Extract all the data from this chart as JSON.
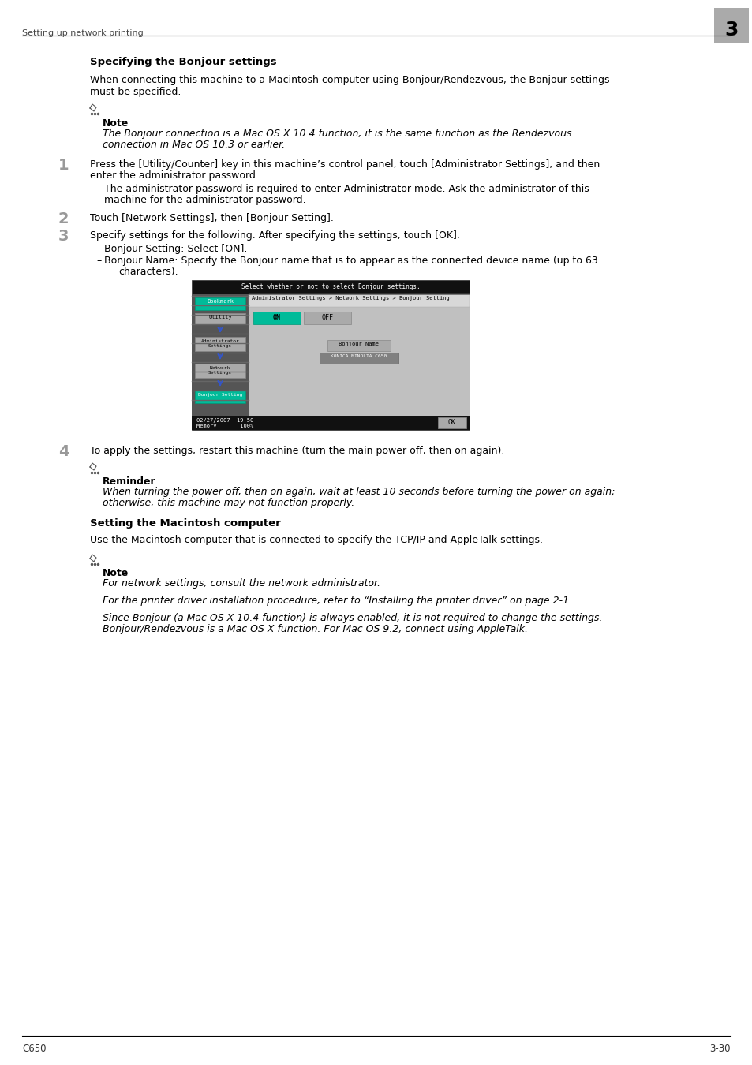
{
  "header_text": "Setting up network printing",
  "chapter_num": "3",
  "footer_left": "C650",
  "footer_right": "3-30",
  "bg_color": "#ffffff",
  "section1_title": "Specifying the Bonjour settings",
  "section1_intro_1": "When connecting this machine to a Macintosh computer using Bonjour/Rendezvous, the Bonjour settings",
  "section1_intro_2": "must be specified.",
  "note1_label": "Note",
  "note1_text_1": "The Bonjour connection is a Mac OS X 10.4 function, it is the same function as the Rendezvous",
  "note1_text_2": "connection in Mac OS 10.3 or earlier.",
  "step1_num": "1",
  "step1_text_1": "Press the [Utility/Counter] key in this machine’s control panel, touch [Administrator Settings], and then",
  "step1_text_2": "enter the administrator password.",
  "step1_sub_1": "The administrator password is required to enter Administrator mode. Ask the administrator of this",
  "step1_sub_2": "machine for the administrator password.",
  "step2_num": "2",
  "step2_text": "Touch [Network Settings], then [Bonjour Setting].",
  "step3_num": "3",
  "step3_text": "Specify settings for the following. After specifying the settings, touch [OK].",
  "step3_sub1": "Bonjour Setting: Select [ON].",
  "step3_sub2_1": "Bonjour Name: Specify the Bonjour name that is to appear as the connected device name (up to 63",
  "step3_sub2_2": "characters).",
  "step4_num": "4",
  "step4_text": "To apply the settings, restart this machine (turn the main power off, then on again).",
  "reminder_label": "Reminder",
  "reminder_text_1": "When turning the power off, then on again, wait at least 10 seconds before turning the power on again;",
  "reminder_text_2": "otherwise, this machine may not function properly.",
  "section2_title": "Setting the Macintosh computer",
  "section2_intro": "Use the Macintosh computer that is connected to specify the TCP/IP and AppleTalk settings.",
  "note2_label": "Note",
  "note2_line1": "For network settings, consult the network administrator.",
  "note2_line2": "For the printer driver installation procedure, refer to “Installing the printer driver” on page 2-1.",
  "note2_line3_1": "Since Bonjour (a Mac OS X 10.4 function) is always enabled, it is not required to change the settings.",
  "note2_line3_2": "Bonjour/Rendezvous is a Mac OS X function. For Mac OS 9.2, connect using AppleTalk.",
  "img_screen_title": "Select whether or not to select Bonjour settings.",
  "img_path": "Administrator Settings > Network Settings > Bonjour Setting",
  "img_bookmark": "Bookmark",
  "img_utility": "Utility",
  "img_admin": "Administrator\nSettings",
  "img_network": "Network\nSettings",
  "img_bonjour_btn": "Bonjour Setting",
  "img_on": "ON",
  "img_off": "OFF",
  "img_bonjour_name_lbl": "Bonjour Name",
  "img_bonjour_name_val": "KONICA MINOLTA C650",
  "img_datetime": "02/27/2007  19:50",
  "img_memory": "Memory       100%",
  "img_ok": "OK",
  "color_green": "#00bb99",
  "color_dark_gray": "#555555",
  "color_mid_gray": "#999999",
  "color_light_gray": "#bbbbbb",
  "color_black": "#111111",
  "color_blue_arrow": "#3355cc"
}
